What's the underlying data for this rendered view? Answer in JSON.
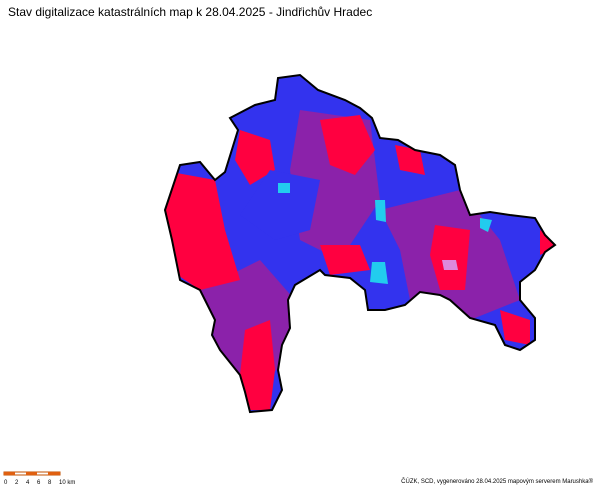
{
  "title": "Stav digitalizace katastrálních map k 28.04.2025 - Jindřichův Hradec",
  "scale_labels": [
    "0",
    "2",
    "4",
    "6",
    "8",
    "10 km"
  ],
  "credit": "ČÚZK, SCD, vygenerováno 28.04.2025 mapovým serverem Marushka®"
}
